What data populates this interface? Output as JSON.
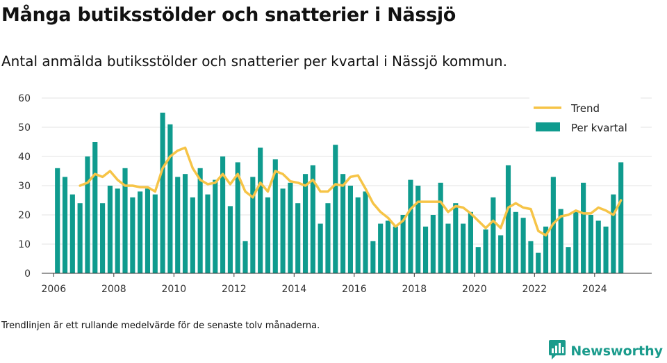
{
  "header": {
    "title": "Många butiksstölder och snatterier i Nässjö",
    "subtitle": "Antal anmälda butiksstölder och snatterier per kvartal i Nässjö kommun."
  },
  "footer": {
    "note": "Trendlinjen är ett rullande medelvärde för de senaste tolv månaderna.",
    "brand": "Newsworthy"
  },
  "colors": {
    "bar": "#0f9b8e",
    "trend": "#f6c447",
    "grid": "#e3e3e3",
    "brand": "#1a9b8c"
  },
  "chart_data": {
    "type": "bar",
    "title": "Många butiksstölder och snatterier i Nässjö",
    "subtitle": "Antal anmälda butiksstölder och snatterier per kvartal i Nässjö kommun.",
    "xlabel": "",
    "ylabel": "",
    "x_ticks": [
      "2006",
      "2008",
      "2010",
      "2012",
      "2014",
      "2016",
      "2018",
      "2020",
      "2022",
      "2024"
    ],
    "y_ticks": [
      0,
      10,
      20,
      30,
      40,
      50,
      60
    ],
    "ylim": [
      0,
      60
    ],
    "grid": true,
    "legend_position": "top-right",
    "start": "2006-Q1",
    "series": [
      {
        "name": "Per kvartal",
        "type": "bar",
        "values": [
          36,
          33,
          27,
          24,
          40,
          45,
          24,
          30,
          29,
          36,
          26,
          28,
          29,
          27,
          55,
          51,
          33,
          34,
          26,
          36,
          27,
          32,
          40,
          23,
          38,
          11,
          33,
          43,
          26,
          39,
          29,
          31,
          24,
          34,
          37,
          17,
          24,
          44,
          34,
          30,
          26,
          28,
          11,
          17,
          18,
          16,
          20,
          32,
          30,
          16,
          20,
          31,
          17,
          24,
          17,
          21,
          9,
          15,
          26,
          13,
          37,
          21,
          19,
          11,
          7,
          16,
          33,
          22,
          9,
          21,
          31,
          20,
          18,
          16,
          27,
          38
        ]
      },
      {
        "name": "Trend",
        "type": "line",
        "values": [
          null,
          null,
          null,
          30,
          31,
          34,
          33,
          35,
          32,
          30,
          30,
          29.5,
          29.5,
          28,
          36,
          40,
          42,
          43,
          36,
          32,
          30.5,
          31,
          34,
          30.5,
          34,
          28,
          26,
          31,
          28,
          35,
          34,
          31.5,
          31,
          30,
          32,
          28,
          28,
          30.5,
          30,
          33,
          33.5,
          29,
          24,
          21,
          19,
          16,
          18,
          22,
          24.5,
          24.5,
          24.5,
          24.5,
          21,
          23,
          22.5,
          20.5,
          18,
          15.5,
          18,
          15.5,
          22.5,
          24,
          22.5,
          22,
          14.5,
          13,
          17,
          19.5,
          20,
          21.5,
          20.5,
          20.5,
          22.5,
          21.5,
          20,
          25
        ]
      }
    ]
  }
}
